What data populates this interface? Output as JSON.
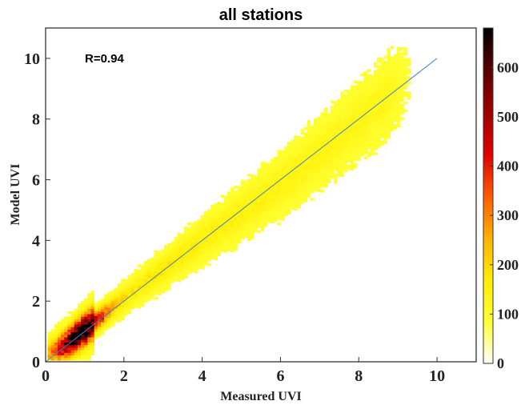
{
  "chart_data": {
    "type": "heatmap",
    "title": "all stations",
    "xlabel": "Measured UVI",
    "ylabel": "Model UVI",
    "xlim": [
      0,
      11
    ],
    "ylim": [
      0,
      11
    ],
    "xticks": [
      "0",
      "2",
      "4",
      "6",
      "8",
      "10"
    ],
    "yticks": [
      "0",
      "2",
      "4",
      "6",
      "8",
      "10"
    ],
    "annotation": "R=0.94",
    "reference_line": {
      "x": [
        0,
        10
      ],
      "y": [
        0,
        10
      ],
      "color": "#1f77b4"
    },
    "density_model": {
      "ridge": [
        {
          "x": 0.1,
          "y": 0.25
        },
        {
          "x": 0.5,
          "y": 0.55
        },
        {
          "x": 1.0,
          "y": 1.05
        },
        {
          "x": 2.0,
          "y": 2.1
        },
        {
          "x": 3.0,
          "y": 3.05
        },
        {
          "x": 4.0,
          "y": 4.0
        },
        {
          "x": 5.0,
          "y": 4.9
        },
        {
          "x": 6.0,
          "y": 5.85
        },
        {
          "x": 7.0,
          "y": 6.85
        },
        {
          "x": 8.0,
          "y": 7.95
        },
        {
          "x": 9.0,
          "y": 9.05
        },
        {
          "x": 9.3,
          "y": 9.4
        }
      ],
      "x_range": [
        0.05,
        9.3
      ],
      "peak": {
        "x": 0.85,
        "y": 0.9,
        "count": 680
      }
    },
    "colorbar": {
      "label_ticks": [
        "0",
        "100",
        "200",
        "300",
        "400",
        "500",
        "600"
      ],
      "range": [
        0,
        680
      ],
      "colormap": [
        "#ffffff",
        "#ffff33",
        "#ffee00",
        "#ffb000",
        "#ff5a00",
        "#e00000",
        "#a00000",
        "#5a0000",
        "#000000"
      ]
    }
  }
}
